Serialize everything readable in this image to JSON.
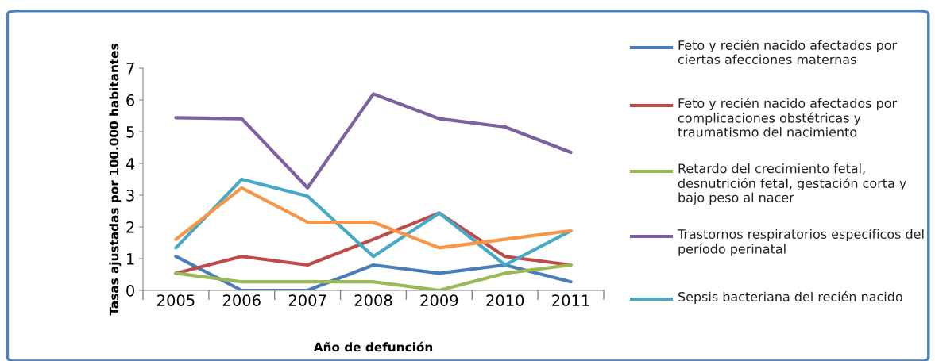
{
  "chart_data": {
    "type": "line",
    "xlabel": "Año de defunción",
    "ylabel": "Tasas ajustadas por 100.000 habitantes",
    "categories": [
      "2005",
      "2006",
      "2007",
      "2008",
      "2009",
      "2010",
      "2011"
    ],
    "series": [
      {
        "name": "Feto y recién nacido afectados por ciertas afecciones maternas",
        "color": "#4a7ebb",
        "values": [
          1.07,
          0,
          0,
          0.8,
          0.54,
          0.8,
          0.27
        ]
      },
      {
        "name": "Feto y recién nacido afectados por complicaciones obstétricas y traumatismo del nacimiento",
        "color": "#be4b48",
        "values": [
          0.54,
          1.07,
          0.8,
          1.61,
          2.44,
          1.07,
          0.8
        ]
      },
      {
        "name": "Retardo del crecimiento fetal, desnutrición fetal, gestación corta y bajo peso al nacer",
        "color": "#98b954",
        "values": [
          0.54,
          0.27,
          0.27,
          0.27,
          0,
          0.54,
          0.8
        ]
      },
      {
        "name": "Trastornos respiratorios específicos del período perinatal",
        "color": "#7d60a0",
        "values": [
          5.44,
          5.41,
          3.23,
          6.19,
          5.41,
          5.15,
          4.35
        ]
      },
      {
        "name": "Sepsis bacteriana del recién nacido",
        "color": "#46aac5",
        "values": [
          1.34,
          3.5,
          2.97,
          1.07,
          2.44,
          0.8,
          1.88
        ]
      },
      {
        "color": "#f79646",
        "values": [
          1.61,
          3.23,
          2.15,
          2.15,
          1.34,
          1.61,
          1.88
        ]
      }
    ],
    "ylim": [
      0,
      7
    ],
    "yticks": [
      0,
      1,
      2,
      3,
      4,
      5,
      6,
      7
    ],
    "grid": false,
    "legend": "right",
    "marker": "none",
    "line_style": "solid"
  }
}
